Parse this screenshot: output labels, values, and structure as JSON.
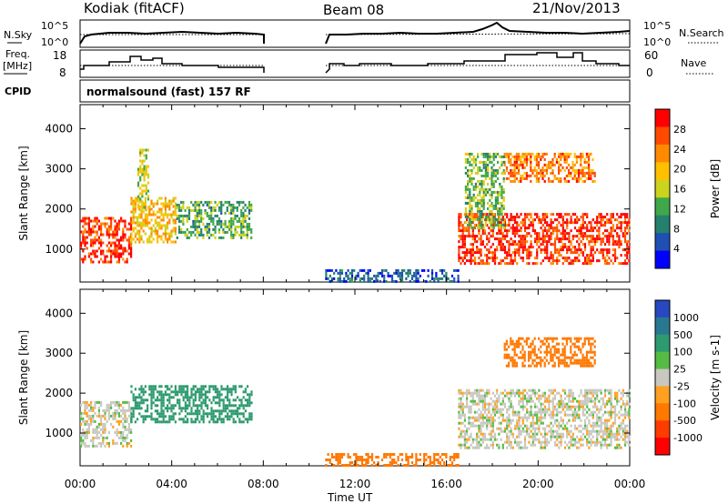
{
  "header": {
    "station": "Kodiak (fitACF)",
    "beam": "Beam 08",
    "date": "21/Nov/2013"
  },
  "top_panels": {
    "nsky_label": "N.Sky",
    "nsky_ticks": [
      "10^5",
      "10^0"
    ],
    "nsearch_label": "N.Search",
    "nsearch_ticks": [
      "10^5",
      "10^0"
    ],
    "freq_label_line1": "Freq.",
    "freq_label_line2": "[MHz]",
    "freq_ticks": [
      "18",
      "8"
    ],
    "nave_label": "Nave",
    "nave_ticks": [
      "60",
      "0"
    ],
    "cpid_label": "CPID",
    "cpid_text": "normalsound (fast) 157 RF"
  },
  "chart_data": [
    {
      "type": "heatmap",
      "name": "power",
      "xlabel": "Time UT",
      "ylabel": "Slant Range [km]",
      "x_ticks": [
        "00:00",
        "04:00",
        "08:00",
        "12:00",
        "16:00",
        "20:00",
        "00:00"
      ],
      "x_range_hours": [
        0,
        24
      ],
      "y_ticks": [
        1000,
        2000,
        3000,
        4000
      ],
      "ylim": [
        180,
        4600
      ],
      "colorbar_label": "Power [dB]",
      "colorbar_ticks": [
        "28",
        "24",
        "20",
        "16",
        "12",
        "8",
        "4"
      ],
      "colorbar_colors": [
        "#ff0000",
        "#ff4a00",
        "#ff8a00",
        "#ffc000",
        "#ccd21e",
        "#3fa84a",
        "#25806e",
        "#1e50b4",
        "#0000ff"
      ],
      "data_gap_hours": [
        8.0,
        10.7
      ],
      "echo_regions": [
        {
          "t0": 0.0,
          "t1": 2.2,
          "r0": 650,
          "r1": 1800,
          "level": 28
        },
        {
          "t0": 2.2,
          "t1": 4.2,
          "r0": 1200,
          "r1": 2300,
          "level": 20
        },
        {
          "t0": 4.2,
          "t1": 7.5,
          "r0": 1300,
          "r1": 2200,
          "level": 12
        },
        {
          "t0": 2.5,
          "t1": 3.0,
          "r0": 2000,
          "r1": 3500,
          "level": 16
        },
        {
          "t0": 10.7,
          "t1": 16.5,
          "r0": 180,
          "r1": 500,
          "level": 6
        },
        {
          "t0": 16.5,
          "t1": 24.0,
          "r0": 650,
          "r1": 1900,
          "level": 28
        },
        {
          "t0": 18.5,
          "t1": 22.5,
          "r0": 2700,
          "r1": 3400,
          "level": 24
        },
        {
          "t0": 16.8,
          "t1": 18.5,
          "r0": 1500,
          "r1": 3400,
          "level": 14
        }
      ]
    },
    {
      "type": "heatmap",
      "name": "velocity",
      "xlabel": "Time UT",
      "ylabel": "Slant Range [km]",
      "x_ticks": [
        "00:00",
        "04:00",
        "08:00",
        "12:00",
        "16:00",
        "20:00",
        "00:00"
      ],
      "x_range_hours": [
        0,
        24
      ],
      "y_ticks": [
        1000,
        2000,
        3000,
        4000
      ],
      "ylim": [
        180,
        4600
      ],
      "colorbar_label": "Velocity [m s-1]",
      "colorbar_ticks": [
        "1000",
        "500",
        "100",
        "25",
        "-25",
        "-100",
        "-500",
        "-1000"
      ],
      "colorbar_colors": [
        "#2848c0",
        "#287890",
        "#2e9a70",
        "#55bb44",
        "#c8c8c0",
        "#ffa020",
        "#ff7800",
        "#ff3c00",
        "#ff0000"
      ],
      "data_gap_hours": [
        8.0,
        10.7
      ],
      "echo_regions": [
        {
          "t0": 0.0,
          "t1": 2.2,
          "r0": 650,
          "r1": 1800,
          "level": 0
        },
        {
          "t0": 2.2,
          "t1": 7.5,
          "r0": 1300,
          "r1": 2200,
          "level": 150
        },
        {
          "t0": 10.7,
          "t1": 16.5,
          "r0": 180,
          "r1": 500,
          "level": -150
        },
        {
          "t0": 16.5,
          "t1": 24.0,
          "r0": 650,
          "r1": 2100,
          "level": 0
        },
        {
          "t0": 18.5,
          "t1": 22.5,
          "r0": 2700,
          "r1": 3400,
          "level": -300
        }
      ]
    }
  ]
}
